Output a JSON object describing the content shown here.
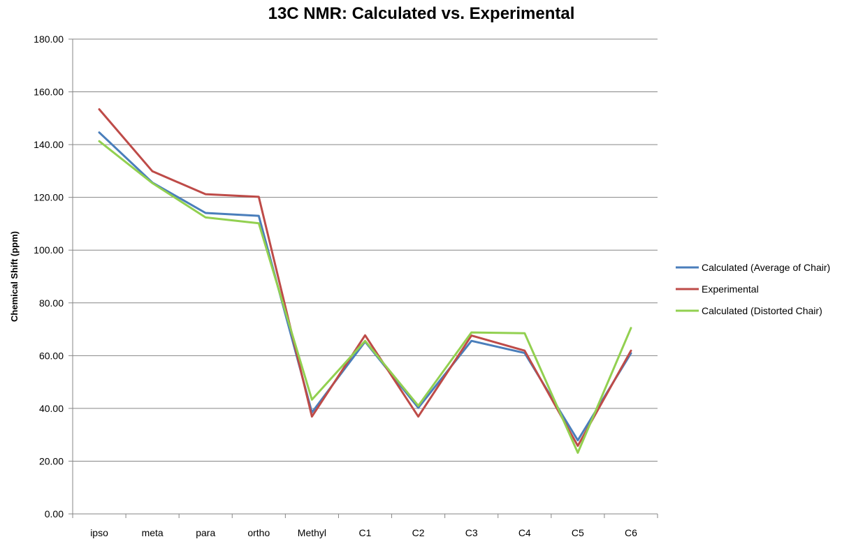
{
  "chart_data": {
    "type": "line",
    "title": "13C NMR: Calculated vs. Experimental",
    "xlabel": "",
    "ylabel": "Chemical Shift (ppm)",
    "ylim": [
      0,
      180
    ],
    "yticks": [
      "0.00",
      "20.00",
      "40.00",
      "60.00",
      "80.00",
      "100.00",
      "120.00",
      "140.00",
      "160.00",
      "180.00"
    ],
    "grid": true,
    "legend_position": "right",
    "categories": [
      "ipso",
      "meta",
      "para",
      "ortho",
      "Methyl",
      "C1",
      "C2",
      "C3",
      "C4",
      "C5",
      "C6"
    ],
    "series": [
      {
        "name": "Calculated (Average of Chair)",
        "color": "#4a7ebb",
        "values": [
          144.6,
          125.6,
          114.1,
          113.0,
          38.5,
          65.3,
          40.2,
          65.6,
          61.0,
          27.9,
          60.9
        ]
      },
      {
        "name": "Experimental",
        "color": "#be4b48",
        "values": [
          153.4,
          129.9,
          121.2,
          120.2,
          36.9,
          67.7,
          36.9,
          67.6,
          61.9,
          25.8,
          61.9
        ]
      },
      {
        "name": "Calculated (Distorted Chair)",
        "color": "#92d050",
        "values": [
          141.3,
          125.4,
          112.4,
          110.2,
          43.3,
          65.6,
          41.0,
          68.8,
          68.5,
          23.2,
          70.5
        ]
      }
    ]
  }
}
